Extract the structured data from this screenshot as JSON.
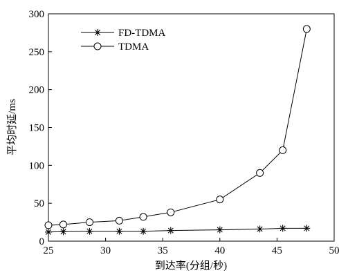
{
  "chart_data": {
    "type": "line",
    "title": "",
    "xlabel": "到达率(分组/秒)",
    "ylabel": "平均时延/ms",
    "xlim": [
      25,
      50
    ],
    "ylim": [
      0,
      300
    ],
    "xticks": [
      25,
      30,
      35,
      40,
      45,
      50
    ],
    "yticks": [
      0,
      50,
      100,
      150,
      200,
      250,
      300
    ],
    "grid": false,
    "legend_position": "top-left",
    "series": [
      {
        "name": "FD-TDMA",
        "marker": "asterisk",
        "x": [
          25.0,
          26.3,
          28.6,
          31.2,
          33.3,
          35.7,
          40.0,
          43.5,
          45.5,
          47.6
        ],
        "y": [
          12,
          12.5,
          13,
          13,
          13,
          14,
          15,
          16,
          17,
          17
        ]
      },
      {
        "name": "TDMA",
        "marker": "circle",
        "x": [
          25.0,
          26.3,
          28.6,
          31.2,
          33.3,
          35.7,
          40.0,
          43.5,
          45.5,
          47.6
        ],
        "y": [
          21,
          22,
          25,
          27,
          32,
          38,
          55,
          90,
          120,
          280
        ]
      }
    ]
  }
}
